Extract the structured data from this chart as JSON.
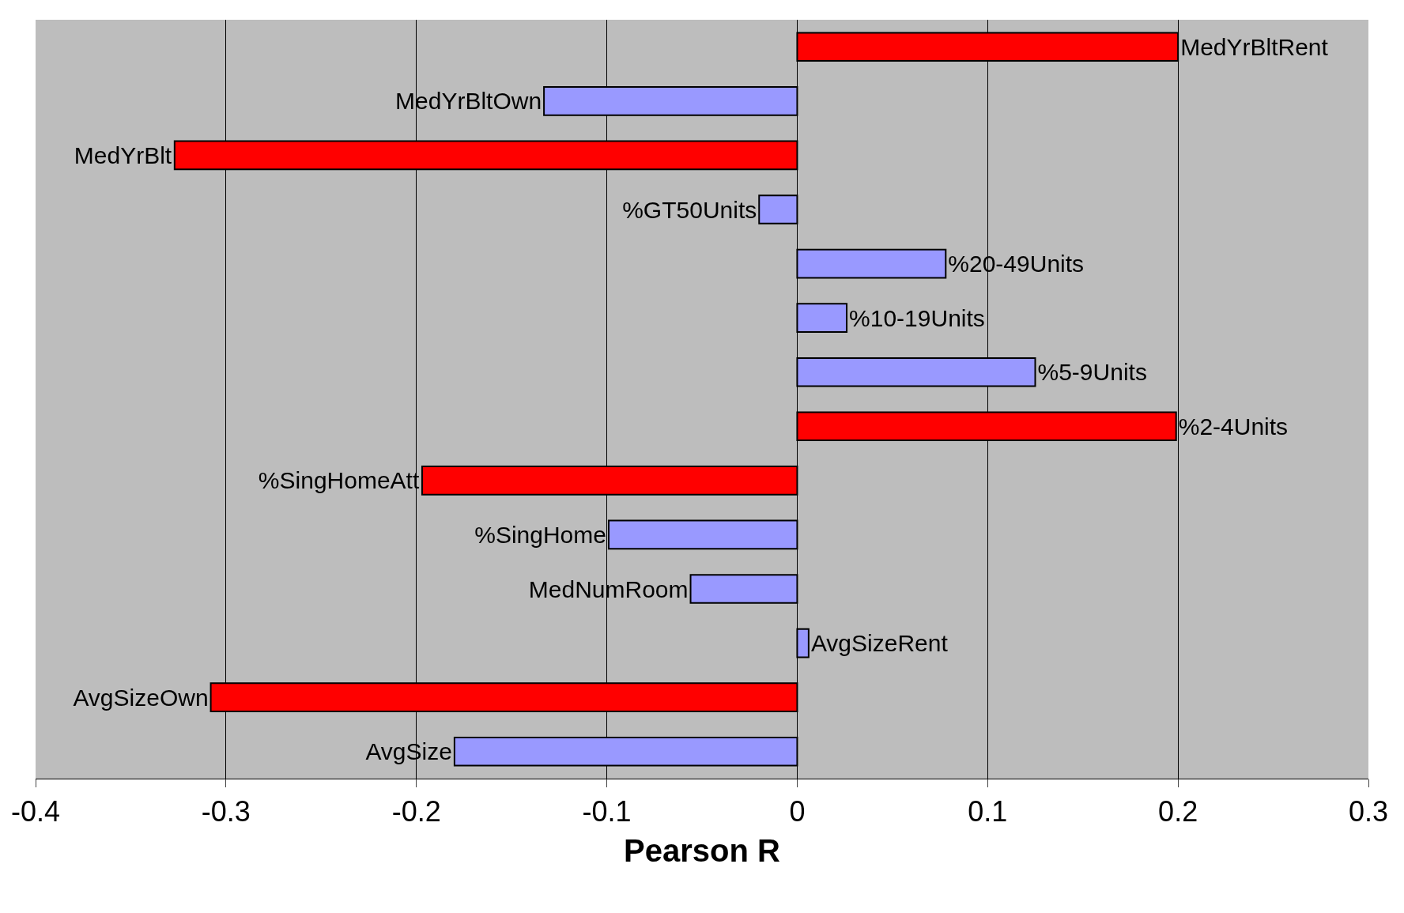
{
  "chart_data": {
    "type": "bar",
    "orientation": "horizontal",
    "xlabel": "Pearson R",
    "categories": [
      "MedYrBltRent",
      "MedYrBltOwn",
      "MedYrBlt",
      "%GT50Units",
      "%20-49Units",
      "%10-19Units",
      "%5-9Units",
      "%2-4Units",
      "%SingHomeAtt",
      "%SingHome",
      "MedNumRoom",
      "AvgSizeRent",
      "AvgSizeOwn",
      "AvgSize"
    ],
    "values": [
      0.2,
      -0.133,
      -0.327,
      -0.02,
      0.078,
      0.026,
      0.125,
      0.199,
      -0.197,
      -0.099,
      -0.056,
      0.006,
      -0.308,
      -0.18
    ],
    "colors": [
      "#ff0000",
      "#9999ff",
      "#ff0000",
      "#9999ff",
      "#9999ff",
      "#9999ff",
      "#9999ff",
      "#ff0000",
      "#ff0000",
      "#9999ff",
      "#9999ff",
      "#9999ff",
      "#ff0000",
      "#9999ff"
    ],
    "xlim": [
      -0.4,
      0.3
    ],
    "xticks": [
      -0.4,
      -0.3,
      -0.2,
      -0.1,
      0,
      0.1,
      0.2,
      0.3
    ],
    "grid": "x",
    "tick_labels": "x"
  }
}
